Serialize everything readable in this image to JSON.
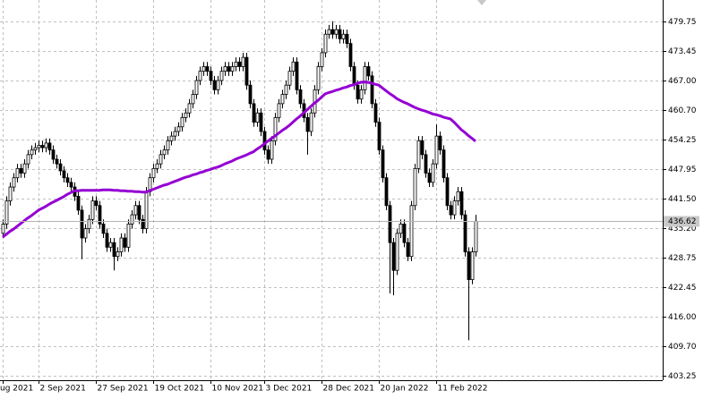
{
  "chart_data": {
    "type": "candlestick",
    "categories": [
      "ug 2021",
      null,
      null,
      null,
      null,
      null,
      null,
      null,
      null,
      null,
      "2 Sep 2021",
      null,
      null,
      null,
      null,
      null,
      null,
      null,
      null,
      null,
      null,
      null,
      null,
      null,
      null,
      null,
      "27 Sep 2021",
      null,
      null,
      null,
      null,
      null,
      null,
      null,
      null,
      null,
      null,
      null,
      null,
      null,
      null,
      null,
      "19 Oct 2021",
      null,
      null,
      null,
      null,
      null,
      null,
      null,
      null,
      null,
      null,
      null,
      null,
      null,
      null,
      null,
      "10 Nov 2021",
      null,
      null,
      null,
      null,
      null,
      null,
      null,
      null,
      null,
      null,
      null,
      null,
      null,
      null,
      "3 Dec 2021",
      null,
      null,
      null,
      null,
      null,
      null,
      null,
      null,
      null,
      null,
      null,
      null,
      null,
      null,
      null,
      "28 Dec 2021",
      null,
      null,
      null,
      null,
      null,
      null,
      null,
      null,
      null,
      null,
      null,
      null,
      null,
      null,
      null,
      "20 Jan 2022",
      null,
      null,
      null,
      null,
      null,
      null,
      null,
      null,
      null,
      null,
      null,
      null,
      null,
      null,
      null,
      "11 Feb 2022",
      null,
      null,
      null,
      null,
      null,
      null,
      null,
      null,
      null,
      null,
      null
    ],
    "open": [
      434,
      436,
      441,
      444,
      446,
      448,
      447,
      449,
      451,
      452,
      452.5,
      453,
      452.5,
      453.5,
      452,
      450,
      449,
      447.5,
      446,
      445,
      444,
      442,
      439,
      433,
      435,
      437,
      441,
      440,
      436,
      434,
      431,
      432,
      429,
      430,
      433,
      431,
      436,
      438,
      440,
      437,
      435,
      443,
      446,
      448,
      449,
      451,
      452,
      454,
      455,
      456,
      457,
      459,
      460,
      462,
      464,
      467,
      469,
      470,
      469,
      467,
      465,
      467,
      469,
      470,
      469,
      470,
      471,
      470,
      472,
      466,
      462,
      458,
      460,
      456,
      452,
      450,
      454,
      459,
      462,
      464,
      466,
      469,
      471,
      465,
      462,
      459,
      456,
      460,
      465,
      470,
      473,
      477,
      478,
      477,
      478,
      476,
      477,
      475,
      470,
      466,
      463,
      465,
      470,
      468,
      462,
      458,
      452,
      446,
      440,
      432,
      426,
      434,
      436,
      432,
      429,
      440,
      448,
      454,
      451,
      447,
      445,
      449,
      455,
      452,
      446,
      440,
      438,
      441,
      443,
      438,
      430,
      424,
      430
    ],
    "high": [
      437,
      442,
      445,
      447,
      449,
      449,
      450,
      452,
      453,
      453.5,
      454,
      454,
      454.5,
      454.5,
      453,
      451,
      450,
      448.5,
      447,
      446,
      445,
      443,
      440,
      436,
      438,
      442,
      442,
      441,
      437,
      435,
      433,
      433,
      431,
      434,
      434,
      437,
      439,
      441,
      441,
      438,
      444,
      447,
      449,
      450,
      452,
      453,
      455,
      456,
      457,
      458,
      460,
      461,
      463,
      465,
      468,
      470,
      471,
      471,
      470,
      468,
      468,
      470,
      471,
      471,
      471,
      472,
      472,
      473,
      473,
      467,
      463,
      461,
      461,
      457,
      453,
      455,
      460,
      463,
      465,
      467,
      470,
      472,
      472,
      466,
      463,
      460,
      461,
      466,
      471,
      474,
      478,
      479,
      479.8,
      479,
      479,
      478,
      478,
      476,
      471,
      467,
      466,
      471,
      471,
      469,
      463,
      459,
      453,
      447,
      441,
      433,
      435,
      437,
      437,
      433,
      441,
      449,
      455,
      455,
      452,
      448,
      450,
      457.5,
      456,
      453,
      447,
      441,
      442,
      444,
      444,
      439,
      431,
      431,
      438
    ],
    "low": [
      433,
      435,
      440,
      443,
      445,
      446,
      446,
      448,
      450,
      451,
      451.5,
      451.5,
      451.5,
      451,
      449,
      448,
      446.5,
      445,
      444,
      443,
      441,
      438,
      428.4,
      432,
      434,
      436,
      439,
      435,
      433,
      430,
      430,
      426,
      428,
      429,
      430,
      430,
      435,
      437,
      436,
      434,
      434,
      442,
      445,
      447,
      448,
      450,
      451,
      453,
      454,
      455,
      456,
      458,
      459,
      461,
      463,
      466,
      468,
      468,
      466,
      464,
      464,
      466,
      468,
      468,
      468,
      469,
      469,
      469,
      465,
      461,
      457,
      457,
      455,
      451,
      449,
      449,
      453,
      458,
      461,
      463,
      465,
      468,
      464,
      461,
      458,
      451,
      455,
      459,
      464,
      469,
      472,
      476,
      476,
      476,
      475,
      475,
      474,
      469,
      465,
      462,
      462,
      464,
      467,
      461,
      457,
      451,
      445,
      439,
      421,
      420.6,
      425,
      433,
      431,
      428,
      428,
      439,
      447,
      450,
      446,
      444,
      444,
      448,
      451,
      445,
      439,
      437,
      437,
      440,
      437,
      429,
      410.9,
      423,
      429
    ],
    "close": [
      436,
      441,
      444,
      446,
      448,
      447,
      449,
      451,
      452,
      452.5,
      453,
      452.5,
      453.5,
      452,
      450,
      449,
      447.5,
      446,
      445,
      444,
      442,
      439,
      433,
      435,
      437,
      441,
      440,
      436,
      434,
      431,
      432,
      429,
      430,
      433,
      431,
      436,
      438,
      440,
      437,
      435,
      443,
      446,
      448,
      449,
      451,
      452,
      454,
      455,
      456,
      457,
      459,
      460,
      462,
      464,
      467,
      469,
      470,
      469,
      467,
      465,
      467,
      469,
      470,
      469,
      470,
      471,
      470,
      472,
      466,
      462,
      458,
      460,
      456,
      452,
      450,
      454,
      459,
      462,
      464,
      466,
      469,
      471,
      465,
      462,
      459,
      456,
      460,
      465,
      470,
      473,
      477,
      478,
      477,
      478,
      476,
      477,
      475,
      470,
      466,
      463,
      465,
      470,
      468,
      462,
      458,
      452,
      446,
      440,
      432,
      426,
      434,
      436,
      432,
      429,
      440,
      448,
      454,
      451,
      447,
      445,
      449,
      455,
      452,
      446,
      440,
      438,
      441,
      443,
      438,
      430,
      424,
      430,
      436.62
    ],
    "color_up": "#ffffff",
    "color_down": "#000000",
    "series": [
      {
        "type": "line",
        "color": "#9400d3",
        "values": [
          433.2,
          433.8,
          434.4,
          434.9,
          435.5,
          436.1,
          436.7,
          437.3,
          437.8,
          438.4,
          439.0,
          439.4,
          439.8,
          440.3,
          440.7,
          441.1,
          441.5,
          441.9,
          442.4,
          442.8,
          443.2,
          443.2,
          443.3,
          443.3,
          443.3,
          443.3,
          443.3,
          443.3,
          443.4,
          443.4,
          443.4,
          443.3,
          443.3,
          443.2,
          443.2,
          443.1,
          443.1,
          443.0,
          443.0,
          442.9,
          442.9,
          443.2,
          443.5,
          443.8,
          444.1,
          444.4,
          444.6,
          444.9,
          445.2,
          445.5,
          445.8,
          446.1,
          446.3,
          446.6,
          446.8,
          447.1,
          447.3,
          447.6,
          447.8,
          448.1,
          448.3,
          448.6,
          449.0,
          449.3,
          449.6,
          450.0,
          450.3,
          450.6,
          450.9,
          451.3,
          451.6,
          452.2,
          452.7,
          453.3,
          453.9,
          454.5,
          455.0,
          455.6,
          456.2,
          456.7,
          457.3,
          458.0,
          458.7,
          459.3,
          460.0,
          460.7,
          461.4,
          462.1,
          462.7,
          463.4,
          464.1,
          464.4,
          464.6,
          464.9,
          465.1,
          465.4,
          465.6,
          465.9,
          466.1,
          466.4,
          466.6,
          466.7,
          466.6,
          466.4,
          466.2,
          466.0,
          465.4,
          464.8,
          464.2,
          463.7,
          463.1,
          462.7,
          462.3,
          462.0,
          461.6,
          461.2,
          460.9,
          460.6,
          460.4,
          460.1,
          459.8,
          459.6,
          459.4,
          459.1,
          458.9,
          458.7,
          458.0,
          457.2,
          456.4,
          455.8,
          455.1,
          454.5,
          453.9
        ]
      }
    ],
    "ylim": [
      402.28,
      484.39
    ],
    "yticks": [
      479.75,
      473.45,
      {
        "value": 467,
        "label": "467.00"
      },
      {
        "value": 460.7,
        "label": "460.70"
      },
      454.25,
      447.95,
      {
        "value": 441.5,
        "label": "441.50"
      },
      {
        "value": 435.2,
        "label": "435.20"
      },
      428.75,
      422.45,
      {
        "value": 416,
        "label": "416.00"
      },
      {
        "value": 409.7,
        "label": "409.70"
      },
      403.25
    ],
    "grid": true
  }
}
